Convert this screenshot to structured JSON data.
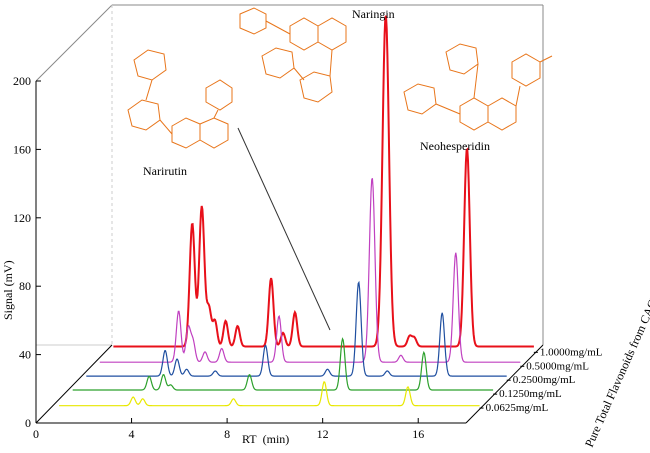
{
  "chart_data": {
    "type": "line",
    "style": "3d-waterfall",
    "x_label": "RT  (min)",
    "y_label": "Signal (mV)",
    "depth_label": "Pure Total Flavonoids from CACH",
    "x_ticks": [
      0,
      4,
      8,
      12,
      16
    ],
    "y_ticks": [
      0,
      40,
      80,
      120,
      160,
      200
    ],
    "xlim": [
      0,
      18
    ],
    "ylim": [
      0,
      200
    ],
    "annotations": [
      "Naringin",
      "Narirutin",
      "Neohesperidin"
    ],
    "series": [
      {
        "name": "0.0625mg/mL",
        "color": "#e8e800",
        "baseline": 2,
        "peaks": [
          [
            3.5,
            5
          ],
          [
            3.9,
            4
          ],
          [
            7.7,
            4
          ],
          [
            11.5,
            14
          ],
          [
            15.0,
            11
          ]
        ]
      },
      {
        "name": "0.1250mg/mL",
        "color": "#2ca02c",
        "baseline": 3,
        "peaks": [
          [
            3.6,
            8
          ],
          [
            4.2,
            9
          ],
          [
            4.5,
            3
          ],
          [
            7.8,
            9
          ],
          [
            11.7,
            30
          ],
          [
            15.1,
            22
          ]
        ]
      },
      {
        "name": "0.2500mg/mL",
        "color": "#1f4fa0",
        "baseline": 3,
        "peaks": [
          [
            3.7,
            15
          ],
          [
            4.2,
            10
          ],
          [
            4.6,
            4
          ],
          [
            5.8,
            3
          ],
          [
            7.9,
            18
          ],
          [
            10.5,
            4
          ],
          [
            11.8,
            55
          ],
          [
            13.0,
            3
          ],
          [
            15.3,
            37
          ]
        ]
      },
      {
        "name": "0.5000mg/mL",
        "color": "#c040c0",
        "baseline": 3,
        "peaks": [
          [
            3.7,
            30
          ],
          [
            4.1,
            20
          ],
          [
            4.3,
            12
          ],
          [
            4.8,
            6
          ],
          [
            5.5,
            8
          ],
          [
            7.9,
            27
          ],
          [
            11.8,
            108
          ],
          [
            13.0,
            4
          ],
          [
            15.3,
            64
          ]
        ]
      },
      {
        "name": "1.0000mg/mL",
        "color": "#e8101a",
        "baseline": 4,
        "peaks": [
          [
            3.7,
            72
          ],
          [
            4.1,
            82
          ],
          [
            4.4,
            22
          ],
          [
            4.65,
            15
          ],
          [
            5.1,
            15
          ],
          [
            5.6,
            12
          ],
          [
            7.0,
            40
          ],
          [
            7.5,
            8
          ],
          [
            8.0,
            20
          ],
          [
            11.8,
            194
          ],
          [
            12.8,
            6
          ],
          [
            13.0,
            5
          ],
          [
            15.2,
            116
          ]
        ]
      }
    ]
  }
}
